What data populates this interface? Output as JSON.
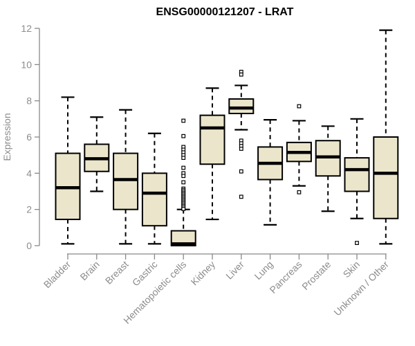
{
  "colors": {
    "background": "#ffffff",
    "box_fill": "#ebe6cb",
    "box_stroke": "#000000",
    "median_stroke": "#000000",
    "whisker_stroke": "#000000",
    "outlier_stroke": "#000000",
    "axis_line": "#888888",
    "axis_text": "#8c8c8c",
    "title_text": "#000000"
  },
  "chart_data": {
    "type": "boxplot",
    "title": "ENSG00000121207 - LRAT",
    "xlabel": "",
    "ylabel": "Expression",
    "ylim": [
      0,
      12
    ],
    "yticks": [
      0,
      2,
      4,
      6,
      8,
      10,
      12
    ],
    "grid": "off",
    "legend": "none",
    "categories": [
      "Bladder",
      "Brain",
      "Breast",
      "Gastric",
      "Hematopoietic cells",
      "Kidney",
      "Liver",
      "Lung",
      "Pancreas",
      "Prostate",
      "Skin",
      "Unknown / Other"
    ],
    "boxes": [
      {
        "category": "Bladder",
        "whisker_low": 0.1,
        "q1": 1.45,
        "median": 3.2,
        "q3": 5.1,
        "whisker_high": 8.2,
        "outliers": []
      },
      {
        "category": "Brain",
        "whisker_low": 3.0,
        "q1": 4.1,
        "median": 4.8,
        "q3": 5.6,
        "whisker_high": 7.1,
        "outliers": []
      },
      {
        "category": "Breast",
        "whisker_low": 0.1,
        "q1": 2.0,
        "median": 3.65,
        "q3": 5.1,
        "whisker_high": 7.5,
        "outliers": []
      },
      {
        "category": "Gastric",
        "whisker_low": 0.1,
        "q1": 1.1,
        "median": 2.9,
        "q3": 4.0,
        "whisker_high": 6.2,
        "outliers": []
      },
      {
        "category": "Hematopoietic cells",
        "whisker_low": 0.0,
        "q1": 0.0,
        "median": 0.1,
        "q3": 0.82,
        "whisker_high": 2.0,
        "outliers": [
          6.9,
          6.05,
          5.45,
          5.3,
          5.15,
          5.0,
          4.85,
          4.3,
          4.0,
          3.85,
          3.5,
          3.15,
          3.07,
          2.99,
          2.91,
          2.83,
          2.75,
          2.67,
          2.59,
          2.51,
          2.43,
          2.35,
          2.27,
          2.19,
          2.11,
          2.03
        ]
      },
      {
        "category": "Kidney",
        "whisker_low": 1.45,
        "q1": 4.5,
        "median": 6.5,
        "q3": 7.2,
        "whisker_high": 8.7,
        "outliers": []
      },
      {
        "category": "Liver",
        "whisker_low": 6.4,
        "q1": 7.3,
        "median": 7.6,
        "q3": 8.1,
        "whisker_high": 8.85,
        "outliers": [
          9.6,
          9.45,
          5.8,
          5.65,
          5.5,
          5.35,
          4.1,
          2.7
        ]
      },
      {
        "category": "Lung",
        "whisker_low": 1.15,
        "q1": 3.65,
        "median": 4.55,
        "q3": 5.45,
        "whisker_high": 6.95,
        "outliers": []
      },
      {
        "category": "Pancreas",
        "whisker_low": 3.3,
        "q1": 4.65,
        "median": 5.15,
        "q3": 5.7,
        "whisker_high": 6.9,
        "outliers": [
          7.7,
          2.95
        ]
      },
      {
        "category": "Prostate",
        "whisker_low": 1.9,
        "q1": 3.85,
        "median": 4.9,
        "q3": 5.8,
        "whisker_high": 6.6,
        "outliers": []
      },
      {
        "category": "Skin",
        "whisker_low": 1.5,
        "q1": 3.0,
        "median": 4.2,
        "q3": 4.85,
        "whisker_high": 7.0,
        "outliers": [
          0.15
        ]
      },
      {
        "category": "Unknown / Other",
        "whisker_low": 0.1,
        "q1": 1.5,
        "median": 4.0,
        "q3": 6.0,
        "whisker_high": 11.9,
        "outliers": []
      }
    ]
  }
}
